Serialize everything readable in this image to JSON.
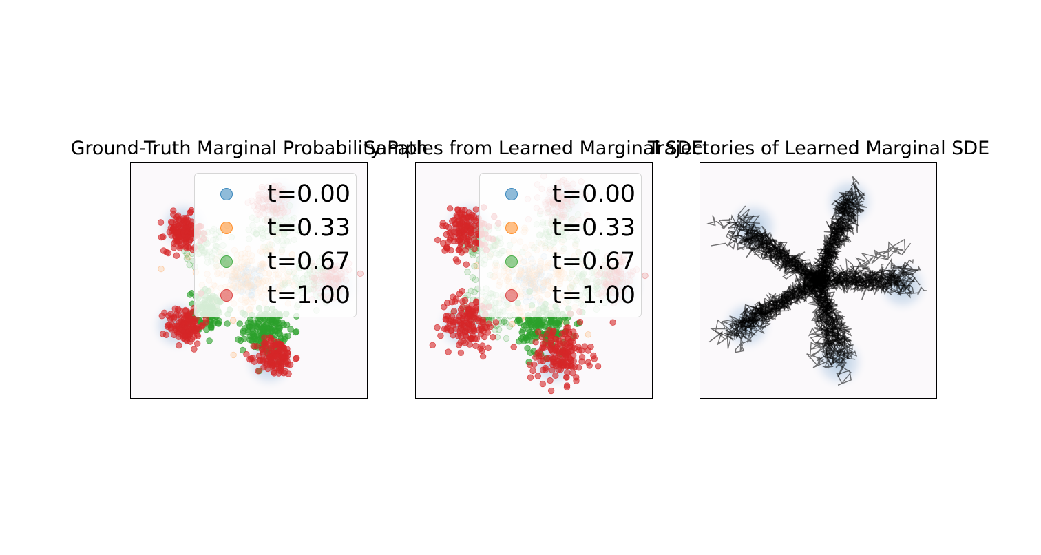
{
  "chart_data": [
    {
      "type": "scatter",
      "title": "Ground-Truth Marginal Probability Path",
      "legend": {
        "placement": "top-right",
        "entries": [
          {
            "label": "t=0.00",
            "color": "#1f77b4"
          },
          {
            "label": "t=0.33",
            "color": "#ff7f0e"
          },
          {
            "label": "t=0.67",
            "color": "#2ca02c"
          },
          {
            "label": "t=1.00",
            "color": "#d62728"
          }
        ]
      },
      "xlim": [
        -4.5,
        4.5
      ],
      "ylim": [
        -4.5,
        4.5
      ],
      "ticks": "none",
      "grid": false,
      "background_density": "five-mode blue target density",
      "clusters": [
        {
          "t": 0.0,
          "center": [
            0.0,
            0.0
          ],
          "spread": 0.35,
          "n": 60,
          "alpha": 0.15
        },
        {
          "t": 0.33,
          "center": [
            -0.5,
            0.1
          ],
          "spread": 0.7,
          "n": 90,
          "alpha": 0.15
        },
        {
          "t": 0.33,
          "center": [
            0.5,
            0.1
          ],
          "spread": 0.7,
          "n": 90,
          "alpha": 0.15
        },
        {
          "t": 0.67,
          "center": [
            1.0,
            1.9
          ],
          "spread": 0.4,
          "n": 70,
          "alpha": 0.15
        },
        {
          "t": 0.67,
          "center": [
            -1.6,
            1.3
          ],
          "spread": 0.4,
          "n": 70,
          "alpha": 0.15
        },
        {
          "t": 0.67,
          "center": [
            2.2,
            0.0
          ],
          "spread": 0.4,
          "n": 70,
          "alpha": 0.15
        },
        {
          "t": 0.67,
          "center": [
            -1.5,
            -1.2
          ],
          "spread": 0.4,
          "n": 90,
          "alpha": 0.6
        },
        {
          "t": 0.67,
          "center": [
            0.6,
            -1.9
          ],
          "spread": 0.4,
          "n": 150,
          "alpha": 0.6
        },
        {
          "t": 1.0,
          "center": [
            -2.5,
            1.8
          ],
          "spread": 0.35,
          "n": 130,
          "alpha": 0.6
        },
        {
          "t": 1.0,
          "center": [
            -2.4,
            -1.7
          ],
          "spread": 0.35,
          "n": 130,
          "alpha": 0.6
        },
        {
          "t": 1.0,
          "center": [
            1.0,
            -2.9
          ],
          "spread": 0.35,
          "n": 130,
          "alpha": 0.6
        },
        {
          "t": 1.0,
          "center": [
            0.9,
            3.0
          ],
          "spread": 0.35,
          "n": 90,
          "alpha": 0.15
        },
        {
          "t": 1.0,
          "center": [
            3.1,
            0.1
          ],
          "spread": 0.35,
          "n": 90,
          "alpha": 0.15
        }
      ]
    },
    {
      "type": "scatter",
      "title": "Samples from Learned Marginal SDE",
      "legend": {
        "placement": "top-right",
        "entries": [
          {
            "label": "t=0.00",
            "color": "#1f77b4"
          },
          {
            "label": "t=0.33",
            "color": "#ff7f0e"
          },
          {
            "label": "t=0.67",
            "color": "#2ca02c"
          },
          {
            "label": "t=1.00",
            "color": "#d62728"
          }
        ]
      },
      "xlim": [
        -4.5,
        4.5
      ],
      "ylim": [
        -4.5,
        4.5
      ],
      "ticks": "none",
      "grid": false,
      "background_density": "five-mode blue target density",
      "clusters": [
        {
          "t": 0.0,
          "center": [
            0.0,
            0.0
          ],
          "spread": 0.35,
          "n": 60,
          "alpha": 0.15
        },
        {
          "t": 0.33,
          "center": [
            -0.5,
            0.1
          ],
          "spread": 0.75,
          "n": 90,
          "alpha": 0.15
        },
        {
          "t": 0.33,
          "center": [
            0.5,
            0.1
          ],
          "spread": 0.75,
          "n": 90,
          "alpha": 0.15
        },
        {
          "t": 0.67,
          "center": [
            0.9,
            1.9
          ],
          "spread": 0.45,
          "n": 70,
          "alpha": 0.15
        },
        {
          "t": 0.67,
          "center": [
            -1.8,
            1.3
          ],
          "spread": 0.45,
          "n": 70,
          "alpha": 0.15
        },
        {
          "t": 0.67,
          "center": [
            2.1,
            0.0
          ],
          "spread": 0.45,
          "n": 70,
          "alpha": 0.15
        },
        {
          "t": 0.67,
          "center": [
            -1.7,
            -1.1
          ],
          "spread": 0.45,
          "n": 90,
          "alpha": 0.15
        },
        {
          "t": 0.67,
          "center": [
            0.4,
            -1.8
          ],
          "spread": 0.5,
          "n": 150,
          "alpha": 0.6
        },
        {
          "t": 1.0,
          "center": [
            -2.6,
            1.9
          ],
          "spread": 0.45,
          "n": 140,
          "alpha": 0.6
        },
        {
          "t": 1.0,
          "center": [
            -2.5,
            -1.6
          ],
          "spread": 0.5,
          "n": 140,
          "alpha": 0.6
        },
        {
          "t": 1.0,
          "center": [
            1.0,
            -2.8
          ],
          "spread": 0.55,
          "n": 160,
          "alpha": 0.6
        },
        {
          "t": 1.0,
          "center": [
            1.0,
            3.0
          ],
          "spread": 0.4,
          "n": 90,
          "alpha": 0.15
        },
        {
          "t": 1.0,
          "center": [
            3.0,
            0.1
          ],
          "spread": 0.4,
          "n": 90,
          "alpha": 0.15
        }
      ]
    },
    {
      "type": "line",
      "title": "Trajectories of Learned Marginal SDE",
      "xlim": [
        -4.5,
        4.5
      ],
      "ylim": [
        -4.5,
        4.5
      ],
      "ticks": "none",
      "grid": false,
      "background_density": "five-mode blue target density",
      "trajectories": {
        "origin": [
          0.0,
          0.0
        ],
        "count": 60,
        "color": "#000000",
        "alpha": 0.55,
        "endpoints": [
          [
            1.3,
            3.3
          ],
          [
            -3.1,
            2.0
          ],
          [
            3.6,
            0.1
          ],
          [
            -3.2,
            -2.0
          ],
          [
            0.9,
            -3.2
          ]
        ]
      }
    }
  ]
}
